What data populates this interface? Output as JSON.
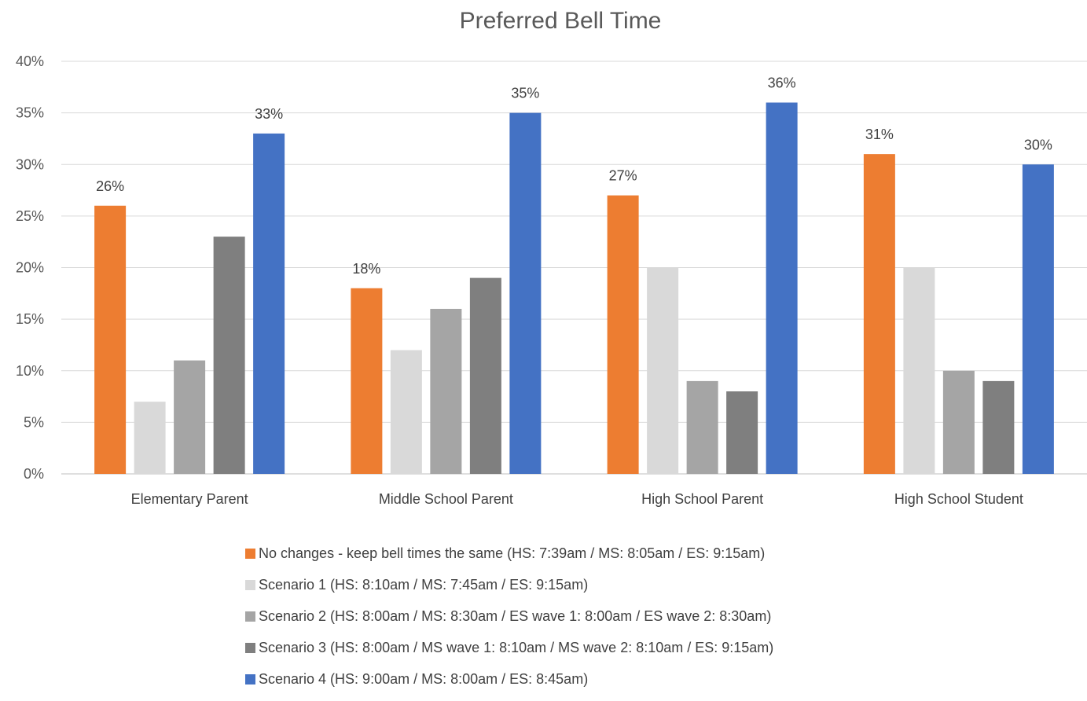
{
  "chart_data": {
    "type": "bar",
    "title": "Preferred Bell Time",
    "xlabel": "",
    "ylabel": "",
    "ylim": [
      0,
      40
    ],
    "y_ticks": [
      "0%",
      "5%",
      "10%",
      "15%",
      "20%",
      "25%",
      "30%",
      "35%",
      "40%"
    ],
    "grid": true,
    "legend_position": "bottom",
    "categories": [
      "Elementary Parent",
      "Middle School Parent",
      "High School Parent",
      "High School Student"
    ],
    "series": [
      {
        "name": "No changes - keep bell times the same (HS: 7:39am / MS: 8:05am / ES: 9:15am)",
        "color": "#ED7D31",
        "values": [
          26,
          18,
          27,
          31
        ],
        "data_labels": [
          "26%",
          "18%",
          "27%",
          "31%"
        ]
      },
      {
        "name": "Scenario 1 (HS: 8:10am / MS: 7:45am / ES: 9:15am)",
        "color": "#D9D9D9",
        "values": [
          7,
          12,
          20,
          20
        ]
      },
      {
        "name": "Scenario 2 (HS: 8:00am / MS: 8:30am / ES wave 1: 8:00am / ES wave 2: 8:30am)",
        "color": "#A5A5A5",
        "values": [
          11,
          16,
          9,
          10
        ]
      },
      {
        "name": "Scenario 3 (HS: 8:00am / MS wave 1: 8:10am / MS wave 2: 8:10am / ES: 9:15am)",
        "color": "#7F7F7F",
        "values": [
          23,
          19,
          8,
          9
        ]
      },
      {
        "name": "Scenario 4 (HS: 9:00am / MS: 8:00am / ES: 8:45am)",
        "color": "#4472C4",
        "values": [
          33,
          35,
          36,
          30
        ],
        "data_labels": [
          "33%",
          "35%",
          "36%",
          "30%"
        ]
      }
    ]
  }
}
